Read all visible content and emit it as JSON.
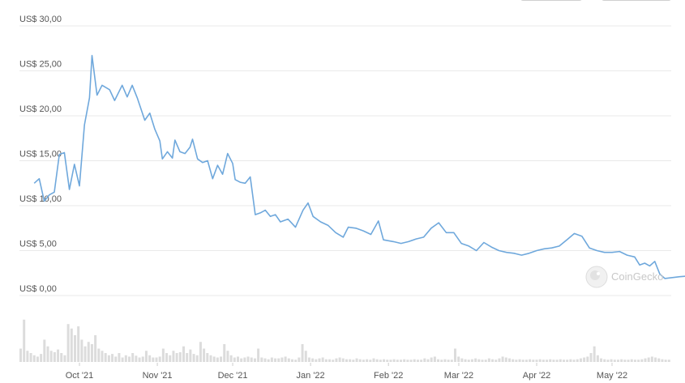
{
  "controls": {
    "left_button": "",
    "right_button": ""
  },
  "watermark": {
    "text": "CoinGecko"
  },
  "colors": {
    "line": "#6fa8dc",
    "grid": "#e9e9e9",
    "volume": "#dcdcdc",
    "text": "#555555"
  },
  "chart_data": {
    "type": "line",
    "title": "",
    "xlabel": "",
    "ylabel": "",
    "ylim": [
      0,
      30
    ],
    "grid": true,
    "y_ticks": [
      "US$ 30,00",
      "US$ 25,00",
      "US$ 20,00",
      "US$ 15,00",
      "US$ 10,00",
      "US$ 5,00",
      "US$ 0,00"
    ],
    "y_tick_values": [
      30,
      25,
      20,
      15,
      10,
      5,
      0
    ],
    "x_ticks": [
      "Oct '21",
      "Nov '21",
      "Dec '21",
      "Jan '22",
      "Feb '22",
      "Mar '22",
      "Apr '22",
      "May '22"
    ],
    "x_tick_dates": [
      "2021-10-01",
      "2021-11-01",
      "2021-12-01",
      "2022-01-01",
      "2022-02-01",
      "2022-03-01",
      "2022-04-01",
      "2022-05-01"
    ],
    "series": [
      {
        "values": [
          [
            "2021-09-13",
            12.5
          ],
          [
            "2021-09-15",
            13.0
          ],
          [
            "2021-09-17",
            10.5
          ],
          [
            "2021-09-19",
            11.2
          ],
          [
            "2021-09-21",
            11.5
          ],
          [
            "2021-09-23",
            15.7
          ],
          [
            "2021-09-25",
            15.9
          ],
          [
            "2021-09-27",
            11.8
          ],
          [
            "2021-09-29",
            14.6
          ],
          [
            "2021-10-01",
            12.2
          ],
          [
            "2021-10-03",
            19.0
          ],
          [
            "2021-10-05",
            22.0
          ],
          [
            "2021-10-06",
            26.7
          ],
          [
            "2021-10-08",
            22.3
          ],
          [
            "2021-10-10",
            23.4
          ],
          [
            "2021-10-13",
            22.9
          ],
          [
            "2021-10-15",
            21.7
          ],
          [
            "2021-10-18",
            23.4
          ],
          [
            "2021-10-20",
            22.1
          ],
          [
            "2021-10-22",
            23.4
          ],
          [
            "2021-10-24",
            22.0
          ],
          [
            "2021-10-27",
            19.5
          ],
          [
            "2021-10-29",
            20.3
          ],
          [
            "2021-10-31",
            18.5
          ],
          [
            "2021-11-02",
            17.2
          ],
          [
            "2021-11-03",
            15.2
          ],
          [
            "2021-11-05",
            16.0
          ],
          [
            "2021-11-07",
            15.3
          ],
          [
            "2021-11-08",
            17.3
          ],
          [
            "2021-11-10",
            16.0
          ],
          [
            "2021-11-12",
            15.8
          ],
          [
            "2021-11-14",
            16.5
          ],
          [
            "2021-11-15",
            17.4
          ],
          [
            "2021-11-17",
            15.2
          ],
          [
            "2021-11-19",
            14.8
          ],
          [
            "2021-11-21",
            15.0
          ],
          [
            "2021-11-23",
            13.0
          ],
          [
            "2021-11-25",
            14.5
          ],
          [
            "2021-11-27",
            13.5
          ],
          [
            "2021-11-29",
            15.8
          ],
          [
            "2021-12-01",
            14.7
          ],
          [
            "2021-12-02",
            12.9
          ],
          [
            "2021-12-04",
            12.6
          ],
          [
            "2021-12-06",
            12.5
          ],
          [
            "2021-12-08",
            13.2
          ],
          [
            "2021-12-10",
            9.0
          ],
          [
            "2021-12-12",
            9.2
          ],
          [
            "2021-12-14",
            9.5
          ],
          [
            "2021-12-16",
            8.8
          ],
          [
            "2021-12-18",
            9.0
          ],
          [
            "2021-12-20",
            8.2
          ],
          [
            "2021-12-23",
            8.5
          ],
          [
            "2021-12-26",
            7.6
          ],
          [
            "2021-12-29",
            9.5
          ],
          [
            "2021-12-31",
            10.3
          ],
          [
            "2022-01-02",
            8.8
          ],
          [
            "2022-01-05",
            8.2
          ],
          [
            "2022-01-08",
            7.8
          ],
          [
            "2022-01-11",
            7.0
          ],
          [
            "2022-01-14",
            6.5
          ],
          [
            "2022-01-16",
            7.6
          ],
          [
            "2022-01-19",
            7.5
          ],
          [
            "2022-01-22",
            7.2
          ],
          [
            "2022-01-25",
            6.8
          ],
          [
            "2022-01-28",
            8.3
          ],
          [
            "2022-01-30",
            6.2
          ],
          [
            "2022-02-03",
            6.0
          ],
          [
            "2022-02-06",
            5.8
          ],
          [
            "2022-02-09",
            6.0
          ],
          [
            "2022-02-12",
            6.3
          ],
          [
            "2022-02-15",
            6.5
          ],
          [
            "2022-02-18",
            7.5
          ],
          [
            "2022-02-21",
            8.1
          ],
          [
            "2022-02-24",
            7.0
          ],
          [
            "2022-02-27",
            7.0
          ],
          [
            "2022-03-02",
            5.8
          ],
          [
            "2022-03-05",
            5.5
          ],
          [
            "2022-03-08",
            5.0
          ],
          [
            "2022-03-11",
            5.9
          ],
          [
            "2022-03-14",
            5.4
          ],
          [
            "2022-03-17",
            5.0
          ],
          [
            "2022-03-20",
            4.8
          ],
          [
            "2022-03-23",
            4.7
          ],
          [
            "2022-03-26",
            4.5
          ],
          [
            "2022-03-29",
            4.7
          ],
          [
            "2022-04-01",
            5.0
          ],
          [
            "2022-04-04",
            5.2
          ],
          [
            "2022-04-07",
            5.3
          ],
          [
            "2022-04-10",
            5.5
          ],
          [
            "2022-04-13",
            6.2
          ],
          [
            "2022-04-16",
            6.9
          ],
          [
            "2022-04-19",
            6.6
          ],
          [
            "2022-04-22",
            5.3
          ],
          [
            "2022-04-25",
            5.0
          ],
          [
            "2022-04-28",
            4.8
          ],
          [
            "2022-05-01",
            4.8
          ],
          [
            "2022-05-04",
            4.9
          ],
          [
            "2022-05-07",
            4.5
          ],
          [
            "2022-05-10",
            4.3
          ],
          [
            "2022-05-12",
            3.4
          ],
          [
            "2022-05-14",
            3.6
          ],
          [
            "2022-05-16",
            3.3
          ],
          [
            "2022-05-18",
            3.8
          ],
          [
            "2022-05-20",
            2.4
          ],
          [
            "2022-05-22",
            1.9
          ],
          [
            "2022-05-25",
            2.0
          ],
          [
            "2022-05-28",
            2.1
          ],
          [
            "2022-06-01",
            2.2
          ]
        ]
      }
    ],
    "volume_relative": [
      0.3,
      0.95,
      0.25,
      0.2,
      0.15,
      0.12,
      0.18,
      0.5,
      0.35,
      0.25,
      0.22,
      0.28,
      0.2,
      0.15,
      0.85,
      0.75,
      0.6,
      0.8,
      0.5,
      0.35,
      0.45,
      0.4,
      0.6,
      0.3,
      0.25,
      0.2,
      0.15,
      0.18,
      0.12,
      0.2,
      0.1,
      0.15,
      0.12,
      0.2,
      0.14,
      0.1,
      0.12,
      0.25,
      0.15,
      0.1,
      0.1,
      0.12,
      0.3,
      0.2,
      0.15,
      0.25,
      0.2,
      0.22,
      0.35,
      0.2,
      0.28,
      0.18,
      0.15,
      0.45,
      0.3,
      0.2,
      0.15,
      0.12,
      0.1,
      0.12,
      0.4,
      0.25,
      0.15,
      0.1,
      0.12,
      0.08,
      0.1,
      0.12,
      0.1,
      0.08,
      0.3,
      0.1,
      0.08,
      0.06,
      0.1,
      0.08,
      0.08,
      0.1,
      0.12,
      0.08,
      0.06,
      0.05,
      0.1,
      0.4,
      0.25,
      0.1,
      0.08,
      0.06,
      0.08,
      0.1,
      0.06,
      0.06,
      0.05,
      0.08,
      0.1,
      0.08,
      0.06,
      0.06,
      0.05,
      0.08,
      0.06,
      0.05,
      0.06,
      0.05,
      0.08,
      0.06,
      0.05,
      0.06,
      0.05,
      0.05,
      0.06,
      0.05,
      0.05,
      0.06,
      0.05,
      0.05,
      0.06,
      0.05,
      0.05,
      0.08,
      0.06,
      0.1,
      0.12,
      0.06,
      0.05,
      0.06,
      0.05,
      0.05,
      0.3,
      0.12,
      0.08,
      0.06,
      0.05,
      0.06,
      0.08,
      0.06,
      0.05,
      0.05,
      0.08,
      0.06,
      0.05,
      0.08,
      0.12,
      0.1,
      0.08,
      0.06,
      0.05,
      0.06,
      0.05,
      0.05,
      0.06,
      0.05,
      0.05,
      0.06,
      0.05,
      0.05,
      0.06,
      0.05,
      0.05,
      0.06,
      0.05,
      0.05,
      0.06,
      0.05,
      0.06,
      0.08,
      0.1,
      0.12,
      0.2,
      0.35,
      0.15,
      0.08,
      0.06,
      0.05,
      0.06,
      0.05,
      0.05,
      0.06,
      0.05,
      0.05,
      0.06,
      0.05,
      0.05,
      0.06,
      0.08,
      0.1,
      0.12,
      0.1,
      0.08,
      0.06,
      0.05,
      0.05
    ]
  }
}
